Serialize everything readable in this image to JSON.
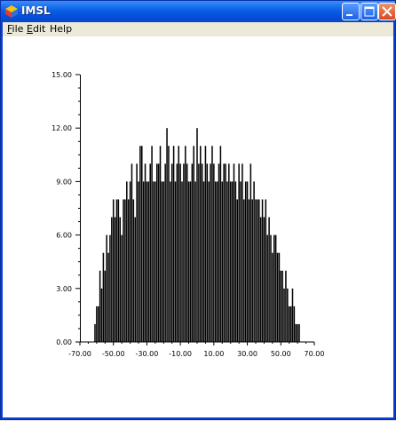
{
  "window": {
    "title": "IMSL",
    "controls": {
      "minimize": "minimize",
      "maximize": "maximize",
      "close": "close"
    }
  },
  "menu": [
    {
      "label": "File",
      "accel": "F"
    },
    {
      "label": "Edit",
      "accel": "E"
    },
    {
      "label": "Help",
      "accel": ""
    }
  ],
  "chart_data": {
    "type": "bar",
    "title": "",
    "xlabel": "",
    "ylabel": "",
    "xlim": [
      -70,
      70
    ],
    "ylim": [
      0,
      15
    ],
    "grid": false,
    "legend": "none",
    "bar_color": "#000000",
    "x_ticks": [
      "-70.00",
      "-50.00",
      "-30.00",
      "-10.00",
      "10.00",
      "30.00",
      "50.00",
      "70.00"
    ],
    "x_tick_values": [
      -70,
      -50,
      -30,
      -10,
      10,
      30,
      50,
      70
    ],
    "y_ticks": [
      "0.00",
      "3.00",
      "6.00",
      "9.00",
      "12.00",
      "15.00"
    ],
    "y_tick_values": [
      0,
      3,
      6,
      9,
      12,
      15
    ],
    "x": [
      -61,
      -60,
      -59,
      -58,
      -57,
      -56,
      -55,
      -54,
      -53,
      -52,
      -51,
      -50,
      -49,
      -48,
      -47,
      -46,
      -45,
      -44,
      -43,
      -42,
      -41,
      -40,
      -39,
      -38,
      -37,
      -36,
      -35,
      -34,
      -33,
      -32,
      -31,
      -30,
      -29,
      -28,
      -27,
      -26,
      -25,
      -24,
      -23,
      -22,
      -21,
      -20,
      -19,
      -18,
      -17,
      -16,
      -15,
      -14,
      -13,
      -12,
      -11,
      -10,
      -9,
      -8,
      -7,
      -6,
      -5,
      -4,
      -3,
      -2,
      -1,
      0,
      1,
      2,
      3,
      4,
      5,
      6,
      7,
      8,
      9,
      10,
      11,
      12,
      13,
      14,
      15,
      16,
      17,
      18,
      19,
      20,
      21,
      22,
      23,
      24,
      25,
      26,
      27,
      28,
      29,
      30,
      31,
      32,
      33,
      34,
      35,
      36,
      37,
      38,
      39,
      40,
      41,
      42,
      43,
      44,
      45,
      46,
      47,
      48,
      49,
      50,
      51,
      52,
      53,
      54,
      55,
      56,
      57,
      58,
      59,
      60,
      61
    ],
    "values": [
      1,
      2,
      2,
      4,
      3,
      5,
      4,
      6,
      5,
      6,
      7,
      8,
      7,
      8,
      8,
      7,
      6,
      8,
      8,
      9,
      8,
      9,
      10,
      8,
      7,
      10,
      9,
      11,
      11,
      9,
      10,
      9,
      9,
      10,
      11,
      9,
      9,
      10,
      10,
      11,
      9,
      9,
      10,
      12,
      11,
      9,
      10,
      11,
      9,
      10,
      11,
      10,
      9,
      10,
      11,
      10,
      9,
      9,
      10,
      11,
      9,
      12,
      10,
      11,
      10,
      9,
      11,
      10,
      9,
      10,
      11,
      10,
      9,
      9,
      10,
      11,
      9,
      10,
      10,
      9,
      10,
      9,
      9,
      10,
      9,
      8,
      10,
      9,
      10,
      8,
      9,
      9,
      8,
      10,
      8,
      9,
      8,
      8,
      8,
      7,
      8,
      7,
      8,
      6,
      7,
      6,
      5,
      6,
      6,
      5,
      5,
      4,
      4,
      3,
      4,
      3,
      2,
      2,
      3,
      2,
      1,
      1,
      1
    ]
  }
}
